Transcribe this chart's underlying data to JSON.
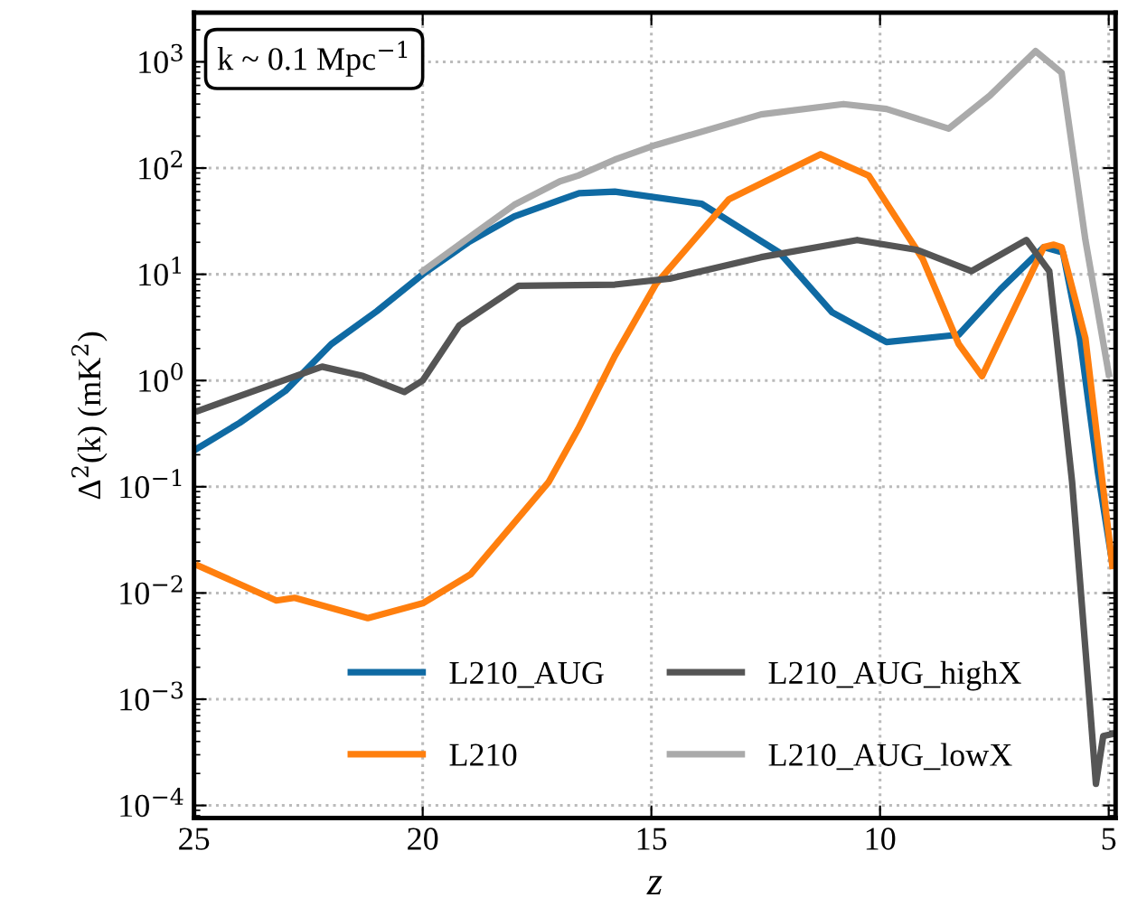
{
  "chart_data": {
    "type": "line",
    "xlabel": "z",
    "ylabel": "Δ$^{2}$(k) (mK$^{2}$)",
    "annotations": [
      "k ~ 0.1 Mpc$^{−1}$"
    ],
    "xlim": [
      25,
      4.85
    ],
    "xticks": [
      25,
      20,
      15,
      10,
      5
    ],
    "log": "y",
    "ylim": [
      7.6e-05,
      2900
    ],
    "yticks": [
      {
        "value": 0.0001,
        "label": "10$^{−4}$"
      },
      {
        "value": 0.001,
        "label": "10$^{−3}$"
      },
      {
        "value": 0.01,
        "label": "10$^{−2}$"
      },
      {
        "value": 0.1,
        "label": "10$^{−1}$"
      },
      {
        "value": 1,
        "label": "10$^{0}$"
      },
      {
        "value": 10,
        "label": "10$^{1}$"
      },
      {
        "value": 100,
        "label": "10$^{2}$"
      },
      {
        "value": 1000,
        "label": "10$^{3}$"
      }
    ],
    "grid": true,
    "legend": "bottom right",
    "line_style": "solid",
    "marker": "none",
    "series": [
      {
        "name": "L210_AUG",
        "color": "#0f6aa3",
        "x": [
          25,
          24,
          23,
          22,
          21,
          20,
          19,
          18,
          17,
          16.58,
          15.8,
          13.9,
          12.2,
          11.05,
          9.86,
          8.28,
          7.37,
          6.42,
          6.0,
          5.63,
          5.24,
          4.92
        ],
        "values": [
          0.22,
          0.4,
          0.8,
          2.2,
          4.5,
          10,
          20,
          35,
          50,
          58,
          60,
          46,
          16,
          4.4,
          2.3,
          2.7,
          7.2,
          18,
          16,
          2.5,
          0.14,
          0.019
        ]
      },
      {
        "name": "L210",
        "color": "#ff7f0e",
        "x": [
          24.9,
          23.2,
          22.8,
          21.2,
          20.0,
          18.95,
          17.25,
          16.6,
          15.8,
          14.9,
          13.3,
          11.3,
          10.25,
          9.07,
          8.28,
          7.77,
          7.1,
          6.42,
          6.2,
          6.03,
          5.51,
          4.92
        ],
        "values": [
          0.018,
          0.0085,
          0.009,
          0.0058,
          0.008,
          0.015,
          0.11,
          0.35,
          1.7,
          8.1,
          51,
          135,
          85,
          14,
          2.2,
          1.1,
          4.4,
          18,
          19,
          18,
          2.5,
          0.018
        ]
      },
      {
        "name": "L210_AUG_highX",
        "color": "#555555",
        "x": [
          24.9,
          22.2,
          21.3,
          20.4,
          20,
          19.2,
          17.9,
          15.8,
          14.6,
          12.6,
          10.5,
          9.2,
          8.0,
          6.8,
          6.3,
          5.8,
          5.43,
          5.28,
          5.12,
          4.92
        ],
        "values": [
          0.52,
          1.35,
          1.1,
          0.78,
          1.0,
          3.3,
          7.8,
          8,
          9.1,
          14.5,
          21,
          17,
          10.7,
          21,
          10.7,
          0.11,
          0.0011,
          0.00016,
          0.00045,
          0.00047
        ]
      },
      {
        "name": "L210_AUG_lowX",
        "color": "#aaaaaa",
        "x": [
          20,
          19,
          18,
          17,
          16.6,
          15.8,
          14.9,
          12.6,
          10.8,
          9.86,
          8.5,
          7.6,
          6.6,
          6.03,
          5.51,
          5.0
        ],
        "values": [
          10.7,
          22,
          45,
          75,
          85,
          120,
          165,
          320,
          400,
          360,
          235,
          480,
          1260,
          790,
          21,
          1.15
        ]
      }
    ]
  }
}
